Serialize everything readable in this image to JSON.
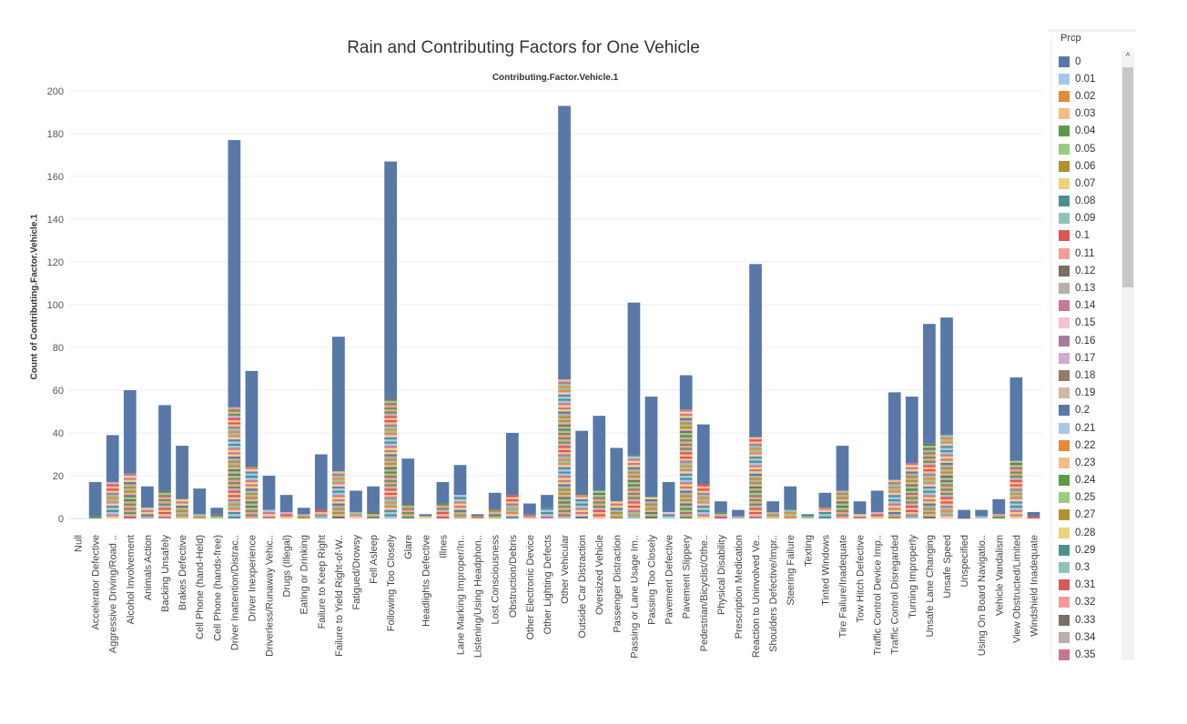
{
  "title": "Rain and Contributing Factors for One Vehicle",
  "subtitle": "Contributing.Factor.Vehicle.1",
  "legend": {
    "title": "Prcp",
    "items": [
      {
        "label": "0",
        "color": "#5878a8"
      },
      {
        "label": "0.01",
        "color": "#a7c7e6"
      },
      {
        "label": "0.02",
        "color": "#e38b38"
      },
      {
        "label": "0.03",
        "color": "#f4bd84"
      },
      {
        "label": "0.04",
        "color": "#5f9a4c"
      },
      {
        "label": "0.05",
        "color": "#98cd7e"
      },
      {
        "label": "0.06",
        "color": "#b09230"
      },
      {
        "label": "0.07",
        "color": "#eed27a"
      },
      {
        "label": "0.08",
        "color": "#4f918a"
      },
      {
        "label": "0.09",
        "color": "#8fc3b8"
      },
      {
        "label": "0.1",
        "color": "#d95757"
      },
      {
        "label": "0.11",
        "color": "#f49b98"
      },
      {
        "label": "0.12",
        "color": "#7a6e67"
      },
      {
        "label": "0.13",
        "color": "#b9aea9"
      },
      {
        "label": "0.14",
        "color": "#cb7594"
      },
      {
        "label": "0.15",
        "color": "#f4c2d3"
      },
      {
        "label": "0.16",
        "color": "#a87c9f"
      },
      {
        "label": "0.17",
        "color": "#d2abc8"
      },
      {
        "label": "0.18",
        "color": "#987a68"
      },
      {
        "label": "0.19",
        "color": "#d3b6a4"
      },
      {
        "label": "0.2",
        "color": "#5878a8"
      },
      {
        "label": "0.21",
        "color": "#a7c7e6"
      },
      {
        "label": "0.22",
        "color": "#e38b38"
      },
      {
        "label": "0.23",
        "color": "#f4bd84"
      },
      {
        "label": "0.24",
        "color": "#5f9a4c"
      },
      {
        "label": "0.25",
        "color": "#98cd7e"
      },
      {
        "label": "0.27",
        "color": "#b09230"
      },
      {
        "label": "0.28",
        "color": "#eed27a"
      },
      {
        "label": "0.29",
        "color": "#4f918a"
      },
      {
        "label": "0.3",
        "color": "#8fc3b8"
      },
      {
        "label": "0.31",
        "color": "#d95757"
      },
      {
        "label": "0.32",
        "color": "#f49b98"
      },
      {
        "label": "0.33",
        "color": "#7a6e67"
      },
      {
        "label": "0.34",
        "color": "#b9aea9"
      },
      {
        "label": "0.35",
        "color": "#cb7594"
      }
    ]
  },
  "chart_data": {
    "type": "bar",
    "stacked": true,
    "title": "Rain and Contributing Factors for One Vehicle",
    "subtitle": "Contributing.Factor.Vehicle.1",
    "xlabel": "",
    "ylabel": "Count of Contributing.Factor.Vehicle.1",
    "ylim": [
      0,
      200
    ],
    "yticks": [
      0,
      20,
      40,
      60,
      80,
      100,
      120,
      140,
      160,
      180,
      200
    ],
    "grid": true,
    "legend_position": "right",
    "series_highlight_note": "each bar is stacked by Prcp; top segment is Prcp = 0",
    "categories": [
      "Null",
      "Accelerator Defective",
      "Aggressive Driving/Road ..",
      "Alcohol Involvement",
      "Animals Action",
      "Backing Unsafely",
      "Brakes Defective",
      "Cell Phone (hand-Held)",
      "Cell Phone (hands-free)",
      "Driver Inattention/Distrac..",
      "Driver Inexperience",
      "Driverless/Runaway Vehic..",
      "Drugs (Illegal)",
      "Eating or Drinking",
      "Failure to Keep Right",
      "Failure to Yield Right-of-W..",
      "Fatigued/Drowsy",
      "Fell Asleep",
      "Following Too Closely",
      "Glare",
      "Headlights Defective",
      "Illnes",
      "Lane Marking Improper/In..",
      "Listening/Using Headphon..",
      "Lost Consciousness",
      "Obstruction/Debris",
      "Other Electronic Device",
      "Other Lighting Defects",
      "Other Vehicular",
      "Outside Car Distraction",
      "Oversized Vehicle",
      "Passenger Distraction",
      "Passing or Lane Usage Im..",
      "Passing Too Closely",
      "Pavement Defective",
      "Pavement Slippery",
      "Pedestrian/Bicyclist/Othe..",
      "Physical Disability",
      "Prescription Medication",
      "Reaction to Uninvolved Ve..",
      "Shoulders Defective/Impr..",
      "Steering Failure",
      "Texting",
      "Tinted Windows",
      "Tire Failure/Inadequate",
      "Tow Hitch Defective",
      "Traffic Control Device Imp..",
      "Traffic Control Disregarded",
      "Turning Improperly",
      "Unsafe Lane Changing",
      "Unsafe Speed",
      "Unspecified",
      "Using On Board Navigatio..",
      "Vehicle Vandalism",
      "View Obstructed/Limited",
      "Windshield Inadequate"
    ],
    "totals": [
      0,
      17,
      39,
      60,
      15,
      53,
      34,
      14,
      5,
      177,
      69,
      20,
      11,
      5,
      30,
      85,
      13,
      15,
      167,
      28,
      2,
      17,
      25,
      2,
      12,
      40,
      7,
      11,
      193,
      41,
      48,
      33,
      101,
      57,
      17,
      67,
      44,
      8,
      4,
      119,
      8,
      15,
      2,
      12,
      34,
      8,
      13,
      59,
      57,
      91,
      94,
      4,
      4,
      9,
      66,
      3
    ],
    "series": [
      {
        "name": "0",
        "values": [
          0,
          16,
          22,
          39,
          10,
          40,
          25,
          12,
          3,
          125,
          45,
          16,
          8,
          3,
          26,
          63,
          10,
          12,
          111,
          21,
          1,
          10,
          14,
          1,
          8,
          29,
          5,
          6,
          128,
          30,
          35,
          25,
          71,
          47,
          14,
          16,
          28,
          5,
          3,
          81,
          5,
          11,
          1,
          7,
          21,
          6,
          10,
          41,
          31,
          56,
          55,
          4,
          3,
          7,
          39,
          2
        ]
      },
      {
        "name": "other Prcp values (stacked)",
        "values": [
          0,
          1,
          17,
          21,
          5,
          13,
          9,
          2,
          2,
          52,
          24,
          4,
          3,
          2,
          4,
          22,
          3,
          3,
          56,
          7,
          1,
          7,
          11,
          1,
          4,
          11,
          2,
          5,
          65,
          11,
          13,
          8,
          30,
          10,
          3,
          51,
          16,
          3,
          1,
          38,
          3,
          4,
          1,
          5,
          13,
          2,
          3,
          18,
          26,
          35,
          39,
          0,
          1,
          2,
          27,
          1
        ]
      }
    ]
  },
  "scrollbar": {
    "up_arrow": "^"
  }
}
